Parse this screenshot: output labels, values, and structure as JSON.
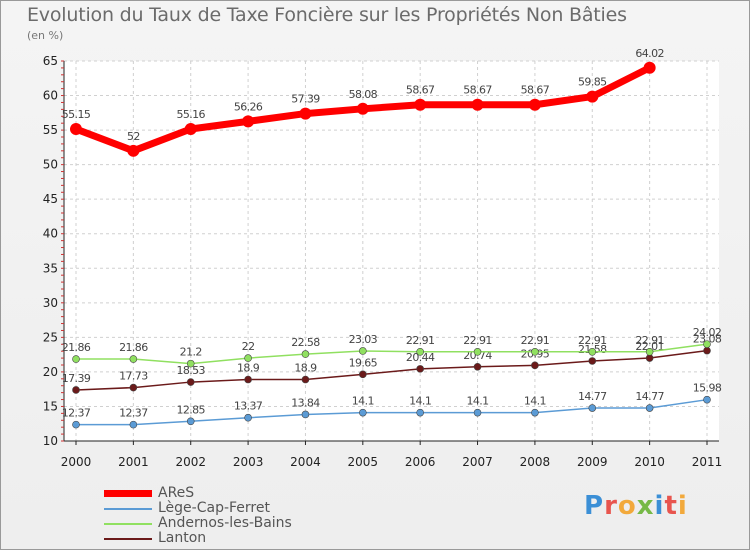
{
  "chart_data": {
    "type": "line",
    "title": "Evolution du Taux de Taxe Foncière sur les Propriétés Non Bâties",
    "subtitle": "(en %)",
    "xlabel": "",
    "ylabel": "(en %)",
    "ylim": [
      10,
      65
    ],
    "yticks": [
      10,
      15,
      20,
      25,
      30,
      35,
      40,
      45,
      50,
      55,
      60,
      65
    ],
    "categories": [
      "2000",
      "2001",
      "2002",
      "2003",
      "2004",
      "2005",
      "2006",
      "2007",
      "2008",
      "2009",
      "2010",
      "2011"
    ],
    "grid": true,
    "legend_position": "bottom-left",
    "series": [
      {
        "name": "AReS",
        "color": "#ff0000",
        "values": [
          55.15,
          52,
          55.16,
          56.26,
          57.39,
          58.08,
          58.67,
          58.67,
          58.67,
          59.85,
          64.02,
          null
        ],
        "labels": [
          "55.15",
          "52",
          "55.16",
          "56.26",
          "57.39",
          "58.08",
          "58.67",
          "58.67",
          "58.67",
          "59.85",
          "64.02",
          ""
        ]
      },
      {
        "name": "Lège-Cap-Ferret",
        "color": "#5b9bd5",
        "values": [
          12.37,
          12.37,
          12.85,
          13.37,
          13.84,
          14.1,
          14.1,
          14.1,
          14.1,
          14.77,
          14.77,
          15.98
        ],
        "labels": [
          "12.37",
          "12.37",
          "12.85",
          "13.37",
          "13.84",
          "14.1",
          "14.1",
          "14.1",
          "14.1",
          "14.77",
          "14.77",
          "15.98"
        ]
      },
      {
        "name": "Andernos-les-Bains",
        "color": "#90e060",
        "values": [
          21.86,
          21.86,
          21.2,
          22,
          22.58,
          23.03,
          22.91,
          22.91,
          22.91,
          22.91,
          22.91,
          24.02
        ],
        "labels": [
          "21.86",
          "21.86",
          "21.2",
          "22",
          "22.58",
          "23.03",
          "22.91",
          "22.91",
          "22.91",
          "22.91",
          "22.91",
          "24.02"
        ]
      },
      {
        "name": "Lanton",
        "color": "#6b1a1a",
        "values": [
          17.39,
          17.73,
          18.53,
          18.9,
          18.9,
          19.65,
          20.44,
          20.74,
          20.95,
          21.58,
          22.01,
          23.08
        ],
        "labels": [
          "17.39",
          "17.73",
          "18.53",
          "18.9",
          "18.9",
          "19.65",
          "20.44",
          "20.74",
          "20.95",
          "21.58",
          "22.01",
          "23.08"
        ]
      }
    ]
  },
  "brand": {
    "letters": [
      {
        "ch": "P",
        "color": "#3b8fd6"
      },
      {
        "ch": "r",
        "color": "#e8554e"
      },
      {
        "ch": "o",
        "color": "#f2a93b"
      },
      {
        "ch": "x",
        "color": "#76b947"
      },
      {
        "ch": "i",
        "color": "#3b8fd6"
      },
      {
        "ch": "t",
        "color": "#e8554e"
      },
      {
        "ch": "i",
        "color": "#f2a93b"
      }
    ]
  }
}
